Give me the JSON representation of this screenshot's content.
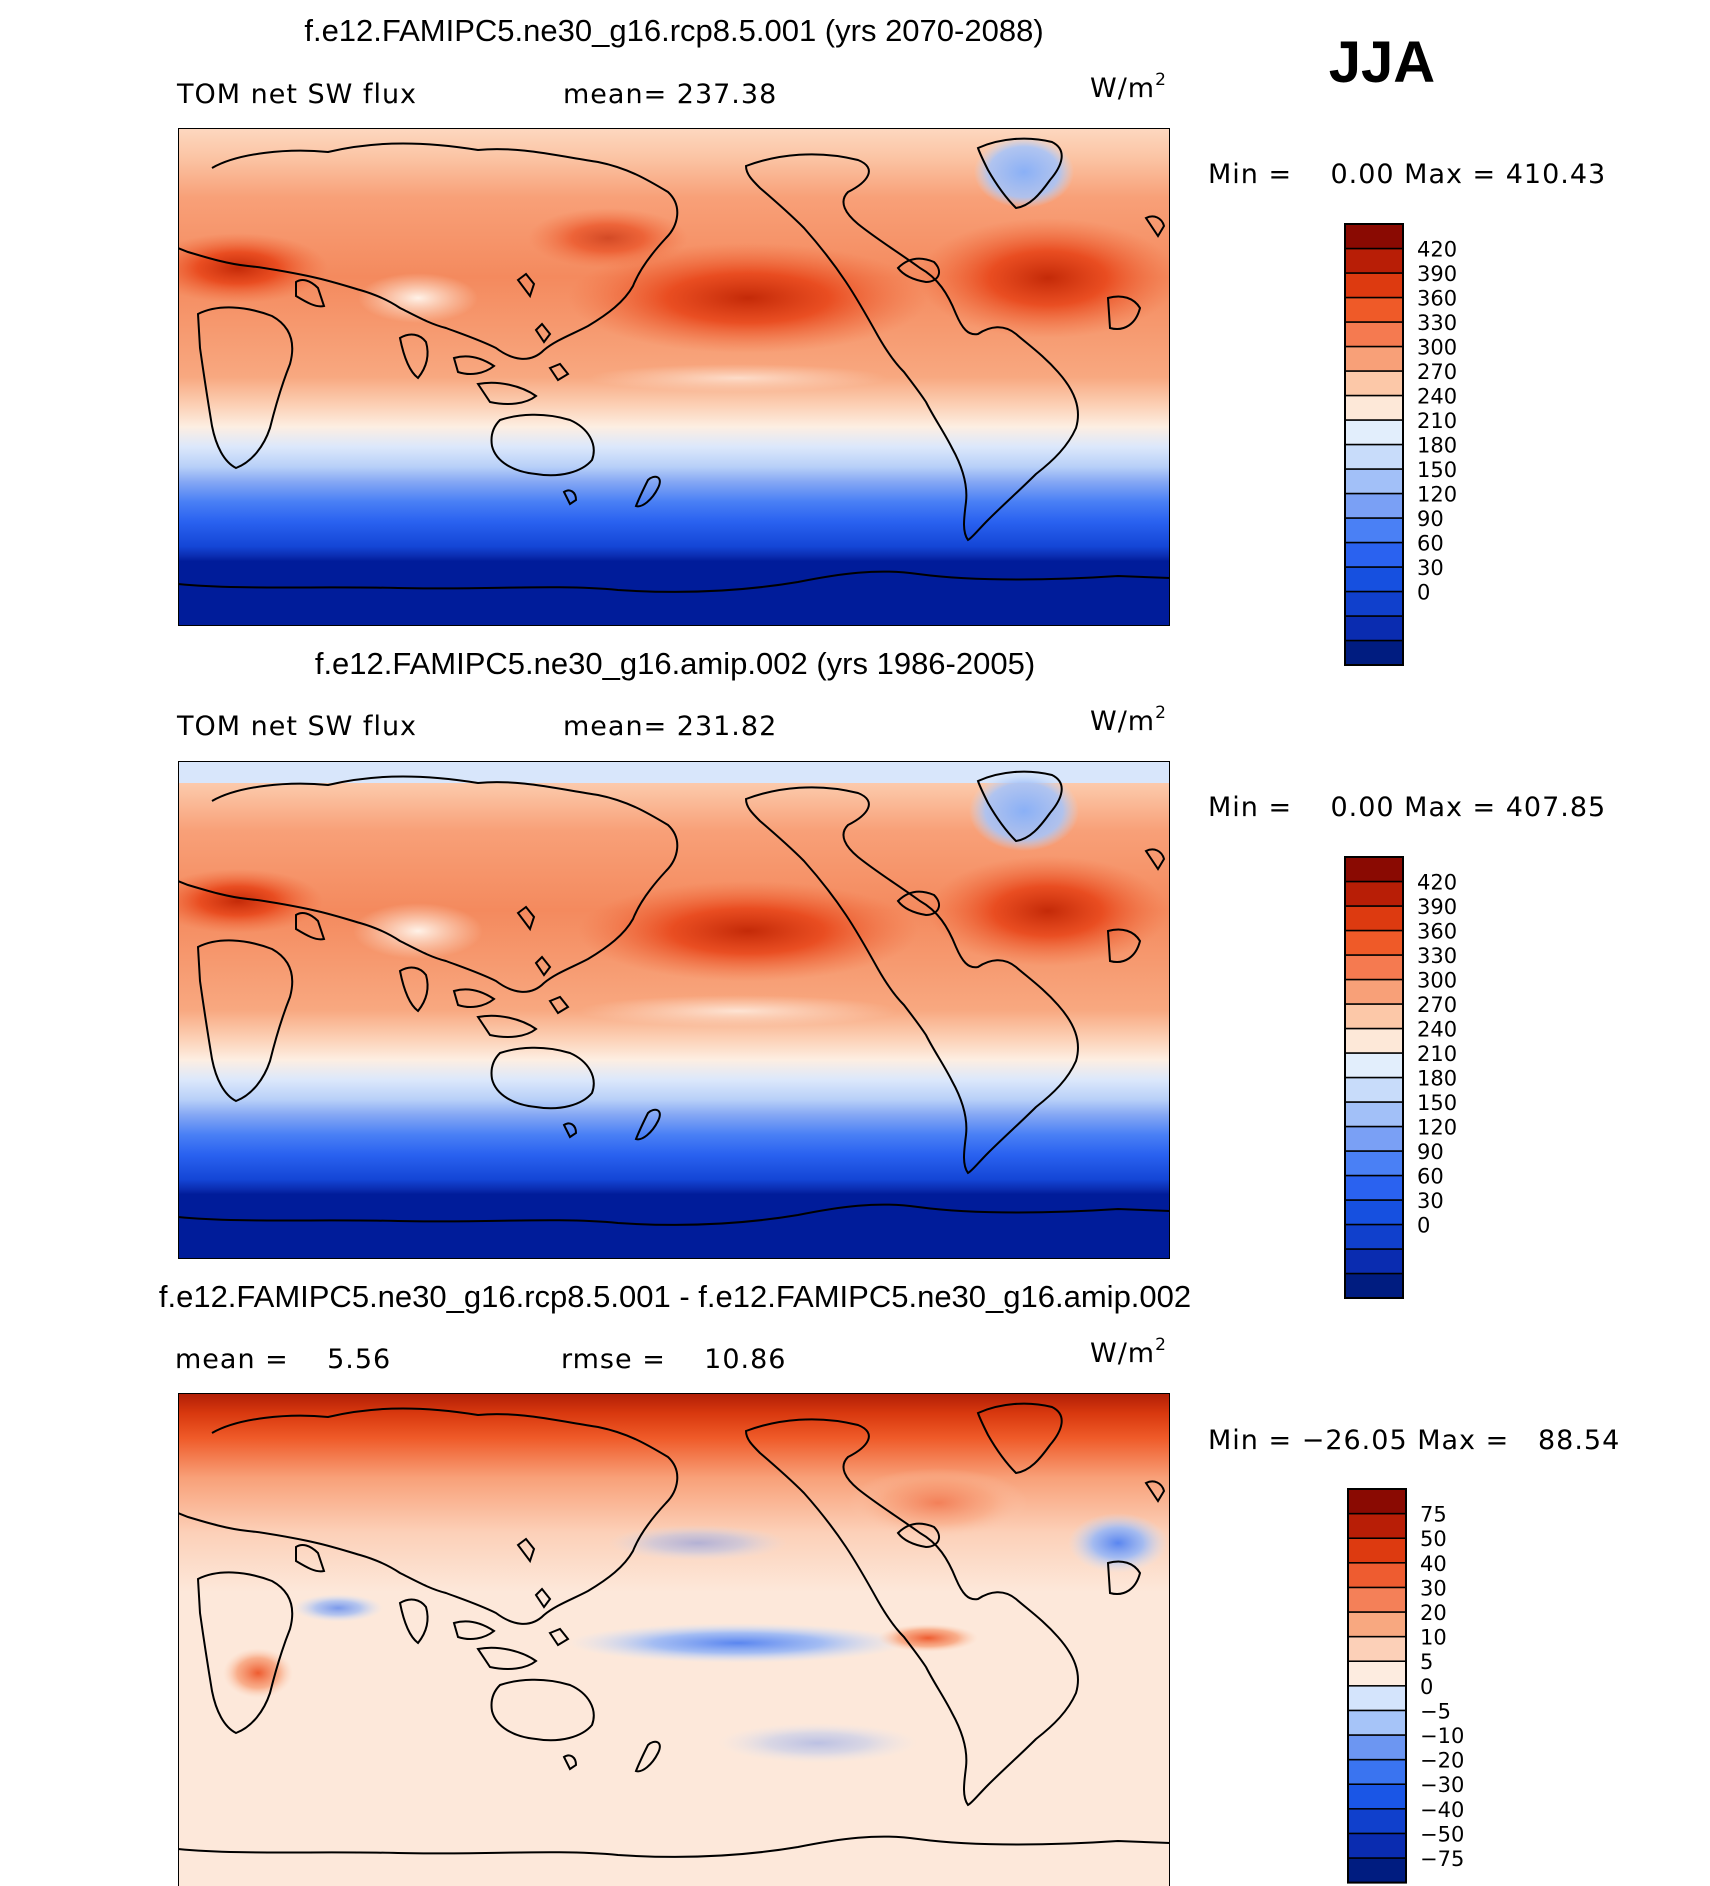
{
  "season": "JJA",
  "unit_main": "W/m",
  "unit_sup": "2",
  "colors": {
    "abs": [
      "#001c80",
      "#0a2cb0",
      "#1040cc",
      "#1650e0",
      "#2a62f0",
      "#4a80f5",
      "#7aa0f5",
      "#a2c0f8",
      "#c8dcfa",
      "#e2eefc",
      "#fde8d8",
      "#fcc8a8",
      "#f8a078",
      "#f57a50",
      "#ef5a28",
      "#dd3a10",
      "#b81e06",
      "#8a0a02"
    ],
    "diff": [
      "#001c80",
      "#0a2cb0",
      "#1040cc",
      "#1a56e6",
      "#3a74f0",
      "#6c96f2",
      "#a6c4f8",
      "#d4e4fc",
      "#fdece0",
      "#fcd0b8",
      "#f8a880",
      "#f48058",
      "#ee5c30",
      "#dd3a10",
      "#b81e06",
      "#8a0a02"
    ]
  },
  "chart_data": [
    {
      "type": "heatmap",
      "title": "f.e12.FAMIPC5.ne30_g16.rcp8.5.001 (yrs 2070-2088)",
      "subtitle": "TOM net SW flux",
      "stat_text": "mean= 237.38",
      "mean": 237.38,
      "min_text": "Min =    0.00 Max = 410.43",
      "min": 0.0,
      "max": 410.43,
      "colorbar_ticks": [
        "420",
        "390",
        "360",
        "330",
        "300",
        "270",
        "240",
        "210",
        "180",
        "150",
        "120",
        "90",
        "60",
        "30",
        "0"
      ],
      "colorbar_levels": [
        0,
        30,
        60,
        90,
        120,
        150,
        180,
        210,
        240,
        270,
        300,
        330,
        360,
        390,
        420
      ]
    },
    {
      "type": "heatmap",
      "title": "f.e12.FAMIPC5.ne30_g16.amip.002 (yrs 1986-2005)",
      "subtitle": "TOM net SW flux",
      "stat_text": "mean= 231.82",
      "mean": 231.82,
      "min_text": "Min =    0.00 Max = 407.85",
      "min": 0.0,
      "max": 407.85,
      "colorbar_ticks": [
        "420",
        "390",
        "360",
        "330",
        "300",
        "270",
        "240",
        "210",
        "180",
        "150",
        "120",
        "90",
        "60",
        "30",
        "0"
      ],
      "colorbar_levels": [
        0,
        30,
        60,
        90,
        120,
        150,
        180,
        210,
        240,
        270,
        300,
        330,
        360,
        390,
        420
      ]
    },
    {
      "type": "heatmap",
      "title": "f.e12.FAMIPC5.ne30_g16.rcp8.5.001 - f.e12.FAMIPC5.ne30_g16.amip.002",
      "stat_text": "mean =    5.56",
      "rmse_text": "rmse =    10.86",
      "mean": 5.56,
      "rmse": 10.86,
      "min_text": "Min = −26.05 Max =   88.54",
      "min": -26.05,
      "max": 88.54,
      "colorbar_ticks": [
        "75",
        "50",
        "40",
        "30",
        "20",
        "10",
        "5",
        "0",
        "−5",
        "−10",
        "−20",
        "−30",
        "−40",
        "−50",
        "−75"
      ],
      "colorbar_levels": [
        -75,
        -50,
        -40,
        -30,
        -20,
        -10,
        -5,
        0,
        5,
        10,
        20,
        30,
        40,
        50,
        75
      ]
    }
  ]
}
